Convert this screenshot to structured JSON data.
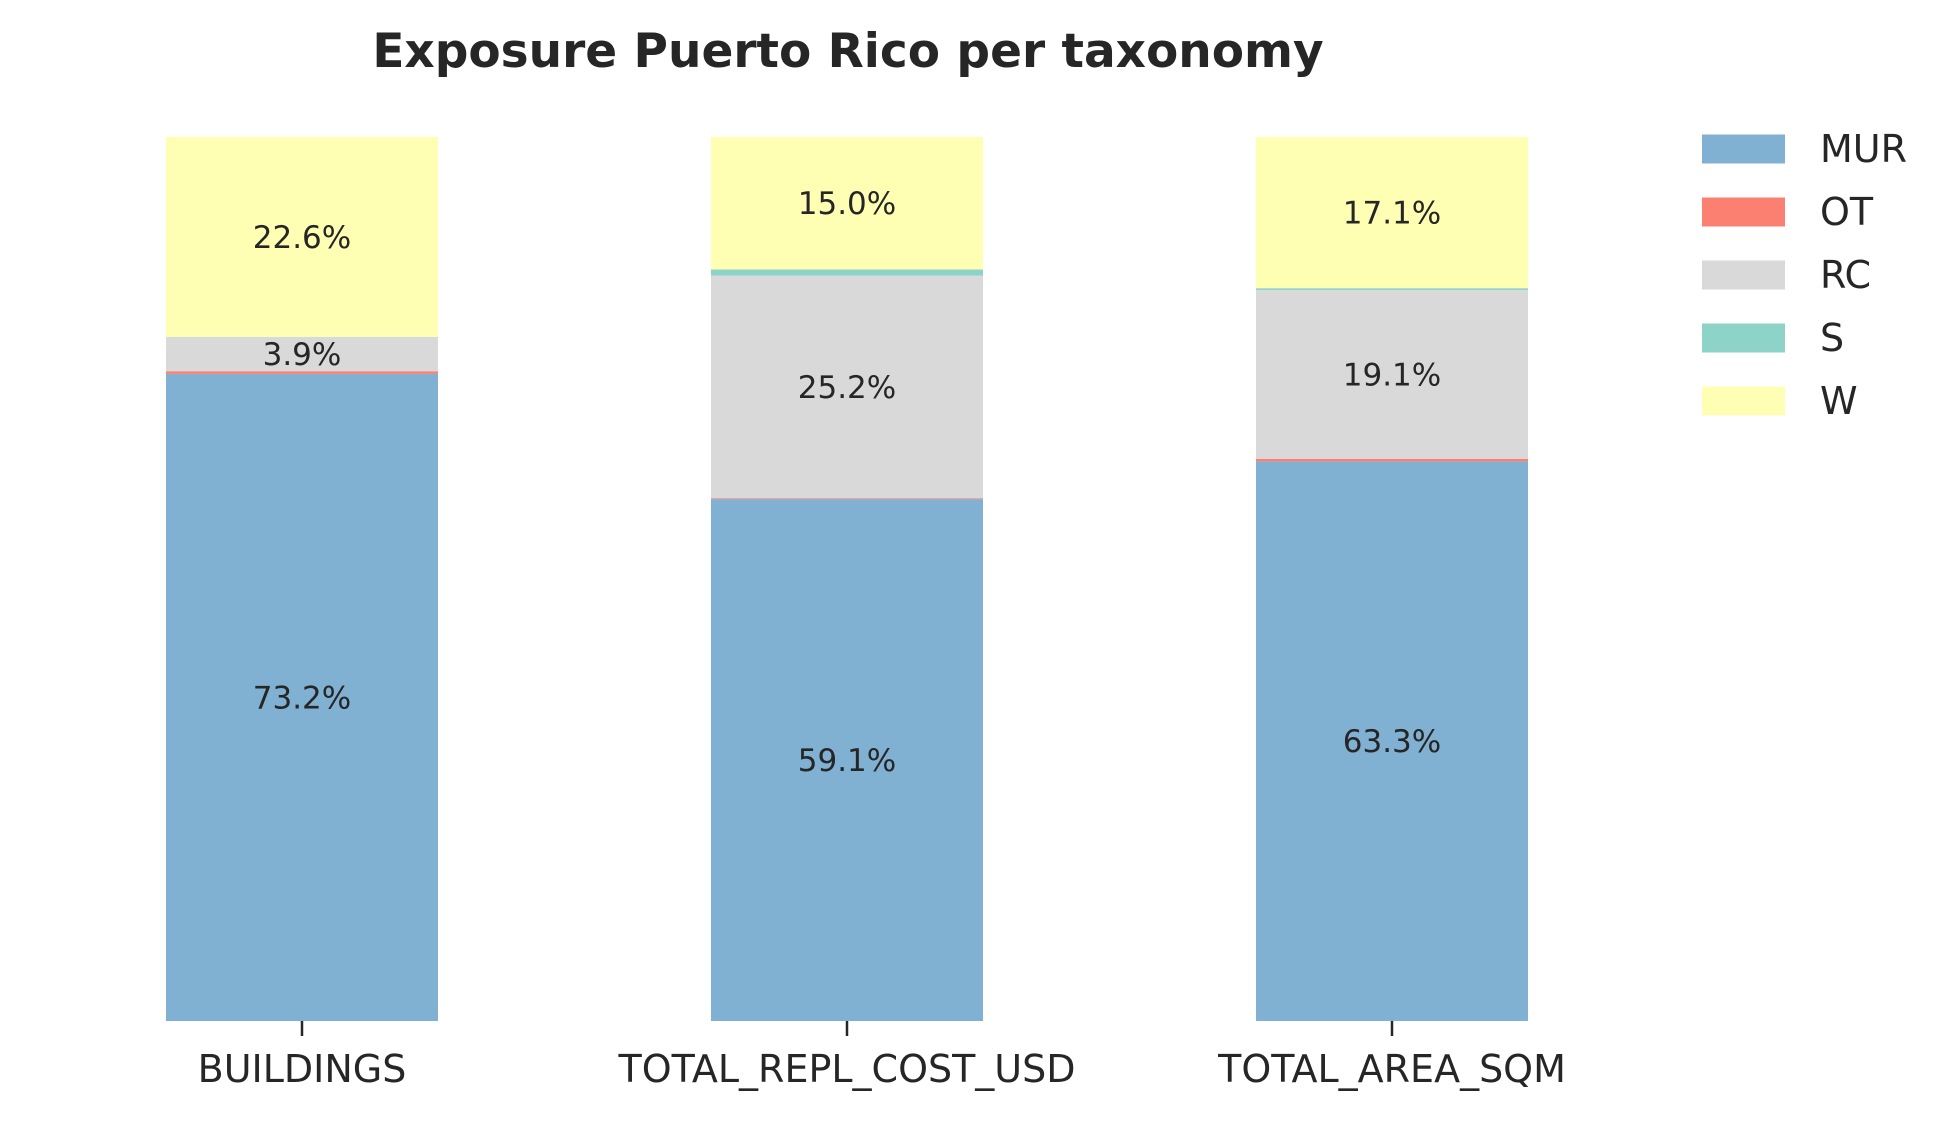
{
  "chart_data": {
    "type": "bar",
    "stacked": true,
    "title": "Exposure Puerto Rico per taxonomy",
    "xlabel": "",
    "ylabel": "",
    "ylim": [
      0,
      100
    ],
    "grid": false,
    "legend_position": "top-right",
    "categories": [
      "BUILDINGS",
      "TOTAL_REPL_COST_USD",
      "TOTAL_AREA_SQM"
    ],
    "series": [
      {
        "name": "MUR",
        "color": "#80b1d3",
        "values": [
          73.2,
          59.1,
          63.3
        ]
      },
      {
        "name": "OT",
        "color": "#fb8072",
        "values": [
          0.3,
          0.1,
          0.3
        ]
      },
      {
        "name": "RC",
        "color": "#d9d9d9",
        "values": [
          3.9,
          25.2,
          19.1
        ]
      },
      {
        "name": "S",
        "color": "#8dd3c7",
        "values": [
          0.0,
          0.7,
          0.2
        ]
      },
      {
        "name": "W",
        "color": "#ffffb3",
        "values": [
          22.6,
          15.0,
          17.1
        ]
      }
    ],
    "data_labels": [
      [
        "73.2%",
        "",
        "3.9%",
        "",
        "22.6%"
      ],
      [
        "59.1%",
        "",
        "25.2%",
        "",
        "15.0%"
      ],
      [
        "63.3%",
        "",
        "19.1%",
        "",
        "17.1%"
      ]
    ]
  }
}
